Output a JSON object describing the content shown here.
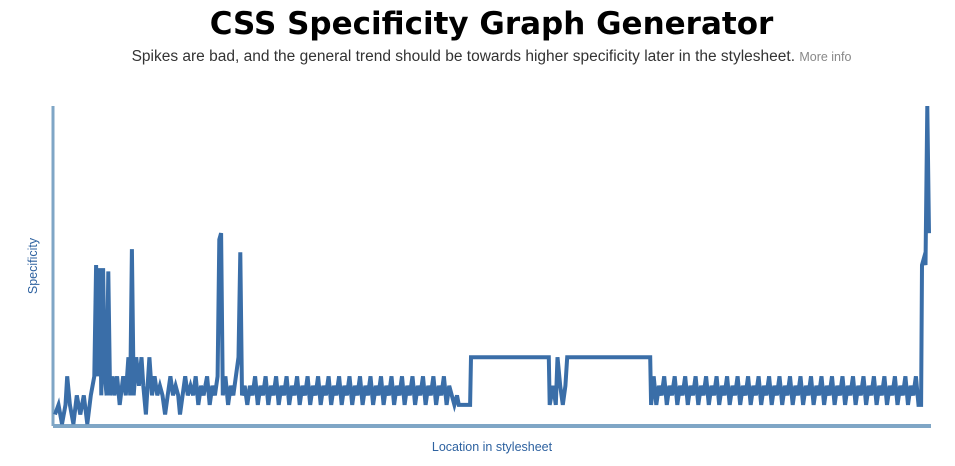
{
  "header": {
    "title": "CSS Specificity Graph Generator",
    "subtitle": "Spikes are bad, and the general trend should be towards higher specificity later in the stylesheet.",
    "more_info_label": "More info"
  },
  "colors": {
    "line": "#3a6ea8",
    "axis": "#7fa6c6",
    "label": "#2e62a0"
  },
  "chart_data": {
    "type": "line",
    "title": "CSS Specificity Graph Generator",
    "xlabel": "Location in stylesheet",
    "ylabel": "Specificity",
    "x_range": [
      0,
      1
    ],
    "y_range": [
      0,
      100
    ],
    "series": [
      {
        "color": "#3a6ea8",
        "points": [
          [
            0.0,
            3
          ],
          [
            0.004,
            6
          ],
          [
            0.008,
            0
          ],
          [
            0.012,
            6
          ],
          [
            0.014,
            15
          ],
          [
            0.017,
            6
          ],
          [
            0.021,
            0
          ],
          [
            0.025,
            9
          ],
          [
            0.029,
            3
          ],
          [
            0.033,
            9
          ],
          [
            0.037,
            0
          ],
          [
            0.041,
            9
          ],
          [
            0.045,
            15
          ],
          [
            0.047,
            50
          ],
          [
            0.049,
            15
          ],
          [
            0.051,
            49
          ],
          [
            0.053,
            9
          ],
          [
            0.055,
            49
          ],
          [
            0.057,
            15
          ],
          [
            0.059,
            9
          ],
          [
            0.061,
            48
          ],
          [
            0.063,
            9
          ],
          [
            0.066,
            15
          ],
          [
            0.068,
            9
          ],
          [
            0.071,
            15
          ],
          [
            0.074,
            6
          ],
          [
            0.078,
            15
          ],
          [
            0.081,
            9
          ],
          [
            0.084,
            21
          ],
          [
            0.086,
            9
          ],
          [
            0.088,
            55
          ],
          [
            0.09,
            9
          ],
          [
            0.093,
            21
          ],
          [
            0.096,
            12
          ],
          [
            0.099,
            21
          ],
          [
            0.101,
            12
          ],
          [
            0.104,
            3
          ],
          [
            0.106,
            12
          ],
          [
            0.108,
            21
          ],
          [
            0.111,
            9
          ],
          [
            0.114,
            15
          ],
          [
            0.117,
            9
          ],
          [
            0.12,
            12
          ],
          [
            0.123,
            9
          ],
          [
            0.126,
            3
          ],
          [
            0.129,
            9
          ],
          [
            0.132,
            15
          ],
          [
            0.135,
            9
          ],
          [
            0.138,
            12
          ],
          [
            0.141,
            9
          ],
          [
            0.143,
            3
          ],
          [
            0.146,
            9
          ],
          [
            0.149,
            15
          ],
          [
            0.152,
            9
          ],
          [
            0.155,
            12
          ],
          [
            0.158,
            9
          ],
          [
            0.161,
            15
          ],
          [
            0.164,
            6
          ],
          [
            0.167,
            12
          ],
          [
            0.17,
            9
          ],
          [
            0.174,
            15
          ],
          [
            0.177,
            6
          ],
          [
            0.18,
            12
          ],
          [
            0.183,
            9
          ],
          [
            0.186,
            15
          ],
          [
            0.188,
            58
          ],
          [
            0.19,
            60
          ],
          [
            0.192,
            9
          ],
          [
            0.195,
            15
          ],
          [
            0.198,
            6
          ],
          [
            0.201,
            12
          ],
          [
            0.204,
            9
          ],
          [
            0.207,
            15
          ],
          [
            0.21,
            21
          ],
          [
            0.212,
            54
          ],
          [
            0.214,
            9
          ],
          [
            0.217,
            12
          ],
          [
            0.22,
            6
          ],
          [
            0.223,
            12
          ],
          [
            0.226,
            9
          ],
          [
            0.229,
            15
          ],
          [
            0.232,
            6
          ],
          [
            0.235,
            12
          ],
          [
            0.238,
            9
          ],
          [
            0.241,
            15
          ],
          [
            0.244,
            6
          ],
          [
            0.247,
            12
          ],
          [
            0.25,
            9
          ],
          [
            0.253,
            15
          ],
          [
            0.256,
            6
          ],
          [
            0.259,
            12
          ],
          [
            0.262,
            9
          ],
          [
            0.265,
            15
          ],
          [
            0.268,
            6
          ],
          [
            0.271,
            12
          ],
          [
            0.274,
            9
          ],
          [
            0.277,
            15
          ],
          [
            0.28,
            6
          ],
          [
            0.283,
            12
          ],
          [
            0.286,
            9
          ],
          [
            0.289,
            15
          ],
          [
            0.292,
            6
          ],
          [
            0.295,
            12
          ],
          [
            0.298,
            9
          ],
          [
            0.301,
            15
          ],
          [
            0.304,
            6
          ],
          [
            0.307,
            12
          ],
          [
            0.31,
            9
          ],
          [
            0.313,
            15
          ],
          [
            0.316,
            6
          ],
          [
            0.319,
            12
          ],
          [
            0.322,
            9
          ],
          [
            0.325,
            15
          ],
          [
            0.328,
            6
          ],
          [
            0.331,
            12
          ],
          [
            0.334,
            9
          ],
          [
            0.337,
            15
          ],
          [
            0.34,
            6
          ],
          [
            0.343,
            12
          ],
          [
            0.346,
            9
          ],
          [
            0.349,
            15
          ],
          [
            0.352,
            6
          ],
          [
            0.355,
            12
          ],
          [
            0.358,
            9
          ],
          [
            0.361,
            15
          ],
          [
            0.364,
            6
          ],
          [
            0.367,
            12
          ],
          [
            0.37,
            9
          ],
          [
            0.373,
            15
          ],
          [
            0.376,
            6
          ],
          [
            0.379,
            12
          ],
          [
            0.382,
            9
          ],
          [
            0.385,
            15
          ],
          [
            0.388,
            6
          ],
          [
            0.391,
            12
          ],
          [
            0.394,
            9
          ],
          [
            0.397,
            15
          ],
          [
            0.4,
            6
          ],
          [
            0.403,
            12
          ],
          [
            0.406,
            9
          ],
          [
            0.409,
            15
          ],
          [
            0.412,
            6
          ],
          [
            0.415,
            12
          ],
          [
            0.418,
            9
          ],
          [
            0.421,
            15
          ],
          [
            0.424,
            6
          ],
          [
            0.427,
            12
          ],
          [
            0.43,
            9
          ],
          [
            0.433,
            15
          ],
          [
            0.436,
            6
          ],
          [
            0.439,
            12
          ],
          [
            0.442,
            9
          ],
          [
            0.445,
            15
          ],
          [
            0.448,
            6
          ],
          [
            0.451,
            12
          ],
          [
            0.454,
            9
          ],
          [
            0.457,
            6
          ],
          [
            0.46,
            9
          ],
          [
            0.462,
            6
          ],
          [
            0.475,
            6
          ],
          [
            0.476,
            21
          ],
          [
            0.565,
            21
          ],
          [
            0.566,
            6
          ],
          [
            0.57,
            12
          ],
          [
            0.573,
            6
          ],
          [
            0.575,
            21
          ],
          [
            0.578,
            12
          ],
          [
            0.581,
            6
          ],
          [
            0.584,
            12
          ],
          [
            0.586,
            21
          ],
          [
            0.681,
            21
          ],
          [
            0.682,
            6
          ],
          [
            0.685,
            15
          ],
          [
            0.688,
            6
          ],
          [
            0.691,
            12
          ],
          [
            0.694,
            9
          ],
          [
            0.697,
            15
          ],
          [
            0.7,
            6
          ],
          [
            0.703,
            12
          ],
          [
            0.706,
            9
          ],
          [
            0.709,
            15
          ],
          [
            0.712,
            6
          ],
          [
            0.715,
            12
          ],
          [
            0.718,
            9
          ],
          [
            0.721,
            15
          ],
          [
            0.724,
            6
          ],
          [
            0.727,
            12
          ],
          [
            0.73,
            9
          ],
          [
            0.733,
            15
          ],
          [
            0.736,
            6
          ],
          [
            0.739,
            12
          ],
          [
            0.742,
            9
          ],
          [
            0.745,
            15
          ],
          [
            0.748,
            6
          ],
          [
            0.751,
            12
          ],
          [
            0.754,
            9
          ],
          [
            0.757,
            15
          ],
          [
            0.76,
            6
          ],
          [
            0.763,
            12
          ],
          [
            0.766,
            9
          ],
          [
            0.769,
            15
          ],
          [
            0.772,
            6
          ],
          [
            0.775,
            12
          ],
          [
            0.778,
            9
          ],
          [
            0.781,
            15
          ],
          [
            0.784,
            6
          ],
          [
            0.787,
            12
          ],
          [
            0.79,
            9
          ],
          [
            0.793,
            15
          ],
          [
            0.796,
            6
          ],
          [
            0.799,
            12
          ],
          [
            0.802,
            9
          ],
          [
            0.805,
            15
          ],
          [
            0.808,
            6
          ],
          [
            0.811,
            12
          ],
          [
            0.814,
            9
          ],
          [
            0.817,
            15
          ],
          [
            0.82,
            6
          ],
          [
            0.823,
            12
          ],
          [
            0.826,
            9
          ],
          [
            0.829,
            15
          ],
          [
            0.832,
            6
          ],
          [
            0.835,
            12
          ],
          [
            0.838,
            9
          ],
          [
            0.841,
            15
          ],
          [
            0.844,
            6
          ],
          [
            0.847,
            12
          ],
          [
            0.85,
            9
          ],
          [
            0.853,
            15
          ],
          [
            0.856,
            6
          ],
          [
            0.859,
            12
          ],
          [
            0.862,
            9
          ],
          [
            0.865,
            15
          ],
          [
            0.868,
            6
          ],
          [
            0.871,
            12
          ],
          [
            0.874,
            9
          ],
          [
            0.877,
            15
          ],
          [
            0.88,
            6
          ],
          [
            0.883,
            12
          ],
          [
            0.886,
            9
          ],
          [
            0.889,
            15
          ],
          [
            0.892,
            6
          ],
          [
            0.895,
            12
          ],
          [
            0.898,
            9
          ],
          [
            0.901,
            15
          ],
          [
            0.904,
            6
          ],
          [
            0.907,
            12
          ],
          [
            0.91,
            9
          ],
          [
            0.913,
            15
          ],
          [
            0.916,
            6
          ],
          [
            0.919,
            12
          ],
          [
            0.922,
            9
          ],
          [
            0.925,
            15
          ],
          [
            0.928,
            6
          ],
          [
            0.931,
            12
          ],
          [
            0.934,
            9
          ],
          [
            0.937,
            15
          ],
          [
            0.94,
            6
          ],
          [
            0.943,
            12
          ],
          [
            0.946,
            9
          ],
          [
            0.949,
            15
          ],
          [
            0.952,
            6
          ],
          [
            0.955,
            12
          ],
          [
            0.958,
            9
          ],
          [
            0.961,
            15
          ],
          [
            0.964,
            6
          ],
          [
            0.967,
            12
          ],
          [
            0.97,
            9
          ],
          [
            0.973,
            15
          ],
          [
            0.976,
            6
          ],
          [
            0.979,
            12
          ],
          [
            0.982,
            9
          ],
          [
            0.985,
            15
          ],
          [
            0.988,
            6
          ],
          [
            0.991,
            6
          ],
          [
            0.992,
            50
          ],
          [
            0.994,
            52
          ],
          [
            0.996,
            50
          ],
          [
            0.998,
            100
          ],
          [
            1.0,
            60
          ]
        ]
      }
    ],
    "grid": false,
    "legend": "none"
  }
}
